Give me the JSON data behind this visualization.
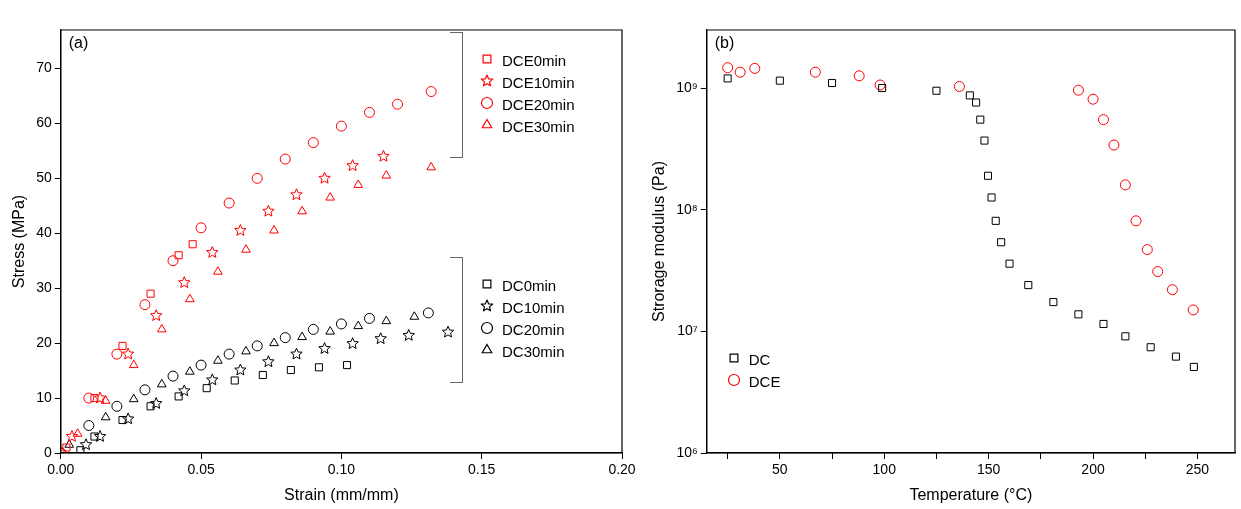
{
  "chart_data": [
    {
      "type": "scatter",
      "xlabel": "Strain (mm/mm)",
      "ylabel": "Stress (MPa)",
      "annotations": [
        "(a)"
      ],
      "xlim": [
        0,
        0.2
      ],
      "ylim": [
        0,
        77
      ],
      "xticks": [
        {
          "value": 0,
          "label": "0.00"
        },
        {
          "value": 0.05,
          "label": "0.05"
        },
        {
          "value": 0.1,
          "label": "0.10"
        },
        {
          "value": 0.15,
          "label": "0.15"
        },
        {
          "value": 0.2,
          "label": "0.20"
        }
      ],
      "yticks": [
        0,
        10,
        20,
        30,
        40,
        50,
        60,
        70
      ],
      "grid": false,
      "legend": "right",
      "series": [
        {
          "name": "DCE0min",
          "color": "#ff0000",
          "marker": "square",
          "x": [
            0.002,
            0.012,
            0.022,
            0.032,
            0.042,
            0.047
          ],
          "values": [
            1,
            10,
            19.5,
            29,
            36,
            38
          ]
        },
        {
          "name": "DCE10min",
          "color": "#ff0000",
          "marker": "star",
          "x": [
            0.004,
            0.014,
            0.024,
            0.034,
            0.044,
            0.054,
            0.064,
            0.074,
            0.084,
            0.094,
            0.104,
            0.115
          ],
          "values": [
            3,
            10,
            18,
            25,
            31,
            36.5,
            40.5,
            44,
            47,
            50,
            52.3,
            54
          ]
        },
        {
          "name": "DCE20min",
          "color": "#ff0000",
          "marker": "circle",
          "x": [
            0,
            0.01,
            0.02,
            0.03,
            0.04,
            0.05,
            0.06,
            0.07,
            0.08,
            0.09,
            0.1,
            0.11,
            0.12,
            0.132
          ],
          "values": [
            0,
            10,
            18,
            27,
            35,
            41,
            45.5,
            50,
            53.5,
            56.5,
            59.5,
            62,
            63.5,
            65.8
          ]
        },
        {
          "name": "DCE30min",
          "color": "#ff0000",
          "marker": "triangle",
          "x": [
            0.006,
            0.016,
            0.026,
            0.036,
            0.046,
            0.056,
            0.066,
            0.076,
            0.086,
            0.096,
            0.106,
            0.116,
            0.132
          ],
          "values": [
            3.5,
            9.5,
            16,
            22.5,
            28,
            33,
            37,
            40.5,
            44,
            46.5,
            48.8,
            50.5,
            52
          ]
        },
        {
          "name": "DC0min",
          "color": "#000000",
          "marker": "square",
          "x": [
            0.007,
            0.012,
            0.022,
            0.032,
            0.042,
            0.052,
            0.062,
            0.072,
            0.082,
            0.092,
            0.102
          ],
          "values": [
            0.5,
            3,
            6,
            8.5,
            10.3,
            11.8,
            13.2,
            14.2,
            15.1,
            15.6,
            16
          ]
        },
        {
          "name": "DC10min",
          "color": "#000000",
          "marker": "star",
          "x": [
            0.009,
            0.014,
            0.024,
            0.034,
            0.044,
            0.054,
            0.064,
            0.074,
            0.084,
            0.094,
            0.104,
            0.114,
            0.124,
            0.138
          ],
          "values": [
            1.5,
            3,
            6.2,
            9,
            11.3,
            13.3,
            15.1,
            16.6,
            18,
            19,
            19.9,
            20.8,
            21.4,
            22
          ]
        },
        {
          "name": "DC20min",
          "color": "#000000",
          "marker": "circle",
          "x": [
            0,
            0.01,
            0.02,
            0.03,
            0.04,
            0.05,
            0.06,
            0.07,
            0.08,
            0.09,
            0.1,
            0.11,
            0.131
          ],
          "values": [
            0,
            5,
            8.5,
            11.5,
            14,
            16,
            18,
            19.5,
            21,
            22.5,
            23.5,
            24.5,
            25.5
          ]
        },
        {
          "name": "DC30min",
          "color": "#000000",
          "marker": "triangle",
          "x": [
            0.003,
            0.016,
            0.026,
            0.036,
            0.046,
            0.056,
            0.066,
            0.076,
            0.086,
            0.096,
            0.106,
            0.116,
            0.126
          ],
          "values": [
            1.5,
            6.5,
            9.8,
            12.5,
            14.8,
            16.8,
            18.5,
            20,
            21.1,
            22.1,
            23.1,
            24,
            24.8
          ]
        }
      ]
    },
    {
      "type": "scatter",
      "xlabel": "Temperature (°C)",
      "ylabel": "Strorage modulus (Pa)",
      "annotations": [
        "(b)"
      ],
      "xlim": [
        15,
        268
      ],
      "ylim": [
        1000000,
        3000000000
      ],
      "log": "y",
      "xticks": [
        {
          "value": 25,
          "label": null
        },
        50,
        {
          "value": 75,
          "label": null
        },
        100,
        {
          "value": 125,
          "label": null
        },
        150,
        {
          "value": 175,
          "label": null
        },
        200,
        {
          "value": 225,
          "label": null
        },
        250
      ],
      "yticks": [
        {
          "value": 1000000,
          "label": "10⁶"
        },
        {
          "value": 10000000,
          "label": "10⁷"
        },
        {
          "value": 100000000,
          "label": "10⁸"
        },
        {
          "value": 1000000000,
          "label": "10⁹"
        }
      ],
      "grid": false,
      "legend": "bottom left",
      "series": [
        {
          "name": "DC",
          "color": "#000000",
          "marker": "square",
          "x": [
            25,
            50,
            75,
            99,
            125,
            141,
            144,
            146,
            148,
            149.7,
            151.4,
            153.4,
            156,
            160,
            169,
            181,
            193,
            205,
            215.5,
            227.6,
            239.7,
            248.3
          ],
          "values": [
            1200000000,
            1150000000,
            1100000000,
            1000000000,
            950000000,
            870000000,
            760000000,
            550000000,
            370000000,
            190000000,
            126000000,
            81000000,
            54000000,
            36000000,
            24000000,
            17400000,
            13800000,
            11500000,
            9100000,
            7400000,
            6200000,
            5100000
          ]
        },
        {
          "name": "DCE",
          "color": "#ff0000",
          "marker": "circle",
          "x": [
            25,
            31,
            38,
            67,
            88,
            98,
            136,
            193,
            200,
            205,
            210,
            215.5,
            220.6,
            226,
            231,
            238,
            248
          ],
          "values": [
            1470000000,
            1350000000,
            1450000000,
            1350000000,
            1260000000,
            1060000000,
            1030000000,
            960000000,
            810000000,
            550000000,
            340000000,
            160000000,
            81000000,
            47000000,
            31000000,
            22000000,
            15000000
          ]
        }
      ]
    }
  ]
}
